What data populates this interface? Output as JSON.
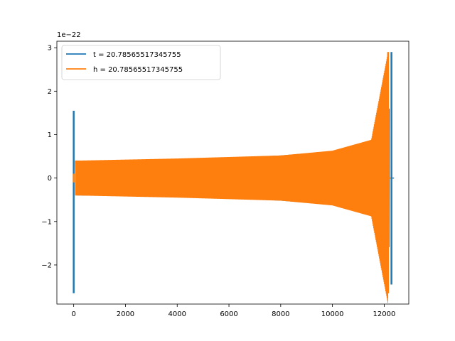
{
  "chart_data": {
    "type": "line",
    "title": "",
    "xlabel": "",
    "ylabel": "",
    "y_offset_label": "1e−22",
    "xlim": [
      -650,
      12950
    ],
    "ylim": [
      -2.9,
      3.15
    ],
    "x_ticks": [
      0,
      2000,
      4000,
      6000,
      8000,
      10000,
      12000
    ],
    "x_tick_labels": [
      "0",
      "2000",
      "4000",
      "6000",
      "8000",
      "10000",
      "12000"
    ],
    "y_ticks": [
      -2,
      -1,
      0,
      1,
      2,
      3
    ],
    "y_tick_labels": [
      "−2",
      "−1",
      "0",
      "1",
      "2",
      "3"
    ],
    "grid": false,
    "legend": "top-left",
    "series": [
      {
        "name": "t = 20.78565517345755",
        "color": "#1f77b4",
        "description_points": {
          "start_spike": {
            "x": 0,
            "ymax": 1.55,
            "ymin": -2.65
          },
          "merger_spike": {
            "x": 12280,
            "ymax": 2.9,
            "ymin": -2.45
          },
          "envelope": [
            [
              50,
              0.4
            ],
            [
              4000,
              0.42
            ],
            [
              8000,
              0.52
            ],
            [
              10000,
              0.62
            ],
            [
              11500,
              0.85
            ],
            [
              12200,
              1.6
            ]
          ]
        }
      },
      {
        "name": "h = 20.78565517345755",
        "color": "#ff7f0e",
        "description_points": {
          "start_spike": {
            "x": 0,
            "ymax": 0.1,
            "ymin": -0.1
          },
          "merger_spike": {
            "x": 12150,
            "ymax": 2.9,
            "ymin": -2.65
          },
          "envelope": [
            [
              50,
              0.4
            ],
            [
              4000,
              0.45
            ],
            [
              8000,
              0.52
            ],
            [
              10000,
              0.63
            ],
            [
              11500,
              0.88
            ],
            [
              12150,
              2.9
            ]
          ]
        }
      }
    ]
  }
}
